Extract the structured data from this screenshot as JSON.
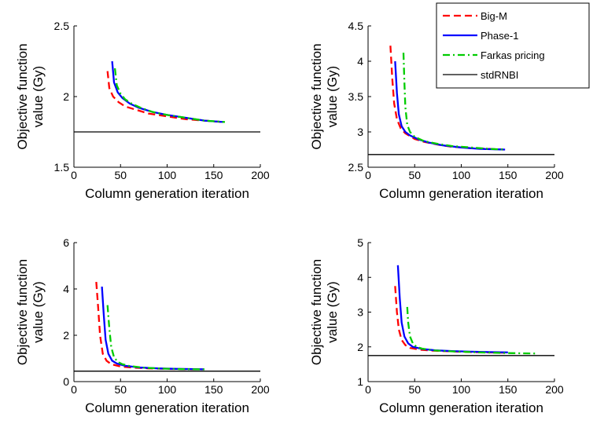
{
  "chart_data": [
    {
      "type": "line",
      "xlabel": "Column generation iteration",
      "ylabel": "Objective function value (Gy)",
      "xlim": [
        0,
        200
      ],
      "ylim": [
        1.5,
        2.5
      ],
      "xticks": [
        "0",
        "50",
        "100",
        "150",
        "200"
      ],
      "yticks": [
        "1.5",
        "2",
        "2.5"
      ],
      "grid": false,
      "series": [
        {
          "name": "Big-M",
          "color": "#ff0000",
          "dash": "dashed",
          "x": [
            36,
            38,
            42,
            48,
            55,
            65,
            80,
            100,
            120,
            140,
            160
          ],
          "y": [
            2.18,
            2.06,
            2.0,
            1.96,
            1.93,
            1.91,
            1.88,
            1.86,
            1.84,
            1.83,
            1.82
          ]
        },
        {
          "name": "Phase-1",
          "color": "#0000ff",
          "dash": "solid",
          "x": [
            41,
            43,
            47,
            52,
            60,
            70,
            85,
            100,
            120,
            140,
            160
          ],
          "y": [
            2.25,
            2.1,
            2.03,
            1.99,
            1.95,
            1.92,
            1.89,
            1.87,
            1.85,
            1.83,
            1.82
          ]
        },
        {
          "name": "Farkas pricing",
          "color": "#00cc00",
          "dash": "dashdot",
          "x": [
            44,
            46,
            50,
            55,
            62,
            72,
            85,
            100,
            120,
            140,
            162
          ],
          "y": [
            2.2,
            2.08,
            2.02,
            1.98,
            1.95,
            1.92,
            1.89,
            1.87,
            1.85,
            1.83,
            1.82
          ]
        },
        {
          "name": "stdRNBI",
          "color": "#000000",
          "dash": "solid",
          "x": [
            0,
            200
          ],
          "y": [
            1.75,
            1.75
          ]
        }
      ]
    },
    {
      "type": "line",
      "xlabel": "Column generation iteration",
      "ylabel": "Objective function value (Gy)",
      "xlim": [
        0,
        200
      ],
      "ylim": [
        2.5,
        4.5
      ],
      "xticks": [
        "0",
        "50",
        "100",
        "150",
        "200"
      ],
      "yticks": [
        "2.5",
        "3",
        "3.5",
        "4",
        "4.5"
      ],
      "grid": false,
      "series": [
        {
          "name": "Big-M",
          "color": "#ff0000",
          "dash": "dashed",
          "x": [
            24,
            26,
            28,
            31,
            35,
            40,
            50,
            60,
            75,
            90,
            110,
            130,
            145
          ],
          "y": [
            4.22,
            3.75,
            3.4,
            3.18,
            3.05,
            2.98,
            2.9,
            2.86,
            2.82,
            2.79,
            2.77,
            2.76,
            2.75
          ]
        },
        {
          "name": "Phase-1",
          "color": "#0000ff",
          "dash": "solid",
          "x": [
            29,
            31,
            33,
            36,
            40,
            45,
            55,
            65,
            80,
            100,
            120,
            147
          ],
          "y": [
            4.0,
            3.55,
            3.25,
            3.08,
            3.0,
            2.95,
            2.89,
            2.85,
            2.81,
            2.78,
            2.76,
            2.75
          ]
        },
        {
          "name": "Farkas pricing",
          "color": "#00cc00",
          "dash": "dashdot",
          "x": [
            38,
            39,
            40,
            42,
            45,
            50,
            60,
            75,
            90,
            110,
            130,
            147
          ],
          "y": [
            4.12,
            3.7,
            3.35,
            3.1,
            3.0,
            2.93,
            2.87,
            2.83,
            2.8,
            2.78,
            2.76,
            2.75
          ]
        },
        {
          "name": "stdRNBI",
          "color": "#000000",
          "dash": "solid",
          "x": [
            0,
            200
          ],
          "y": [
            2.68,
            2.68
          ]
        }
      ]
    },
    {
      "type": "line",
      "xlabel": "Column generation iteration",
      "ylabel": "Objective function value (Gy)",
      "xlim": [
        0,
        200
      ],
      "ylim": [
        0,
        6
      ],
      "xticks": [
        "0",
        "50",
        "100",
        "150",
        "200"
      ],
      "yticks": [
        "0",
        "2",
        "4",
        "6"
      ],
      "grid": false,
      "series": [
        {
          "name": "Big-M",
          "color": "#ff0000",
          "dash": "dashed",
          "x": [
            24,
            26,
            28,
            31,
            35,
            40,
            50,
            65,
            80,
            100,
            120,
            138
          ],
          "y": [
            4.3,
            3.2,
            2.0,
            1.2,
            0.9,
            0.75,
            0.65,
            0.6,
            0.57,
            0.55,
            0.54,
            0.53
          ]
        },
        {
          "name": "Phase-1",
          "color": "#0000ff",
          "dash": "solid",
          "x": [
            30,
            32,
            34,
            37,
            41,
            46,
            55,
            70,
            90,
            110,
            130,
            140
          ],
          "y": [
            4.1,
            2.9,
            1.8,
            1.2,
            0.9,
            0.78,
            0.68,
            0.61,
            0.57,
            0.55,
            0.54,
            0.53
          ]
        },
        {
          "name": "Farkas pricing",
          "color": "#00cc00",
          "dash": "dashdot",
          "x": [
            36,
            38,
            40,
            43,
            47,
            52,
            60,
            75,
            95,
            115,
            140
          ],
          "y": [
            3.3,
            2.3,
            1.5,
            1.05,
            0.85,
            0.75,
            0.67,
            0.6,
            0.56,
            0.54,
            0.53
          ]
        },
        {
          "name": "stdRNBI",
          "color": "#000000",
          "dash": "solid",
          "x": [
            0,
            200
          ],
          "y": [
            0.45,
            0.45
          ]
        }
      ]
    },
    {
      "type": "line",
      "xlabel": "Column generation iteration",
      "ylabel": "Objective function value (Gy)",
      "xlim": [
        0,
        200
      ],
      "ylim": [
        1,
        5
      ],
      "xticks": [
        "0",
        "50",
        "100",
        "150",
        "200"
      ],
      "yticks": [
        "1",
        "2",
        "3",
        "4",
        "5"
      ],
      "grid": false,
      "series": [
        {
          "name": "Big-M",
          "color": "#ff0000",
          "dash": "dashed",
          "x": [
            29,
            31,
            33,
            36,
            40,
            45,
            55,
            70,
            90,
            110,
            130,
            150
          ],
          "y": [
            3.75,
            3.0,
            2.5,
            2.2,
            2.05,
            1.97,
            1.92,
            1.89,
            1.87,
            1.85,
            1.84,
            1.83
          ]
        },
        {
          "name": "Phase-1",
          "color": "#0000ff",
          "dash": "solid",
          "x": [
            32,
            34,
            36,
            39,
            43,
            48,
            58,
            72,
            90,
            110,
            130,
            150
          ],
          "y": [
            4.35,
            3.4,
            2.7,
            2.3,
            2.1,
            2.0,
            1.94,
            1.9,
            1.88,
            1.86,
            1.85,
            1.84
          ]
        },
        {
          "name": "Farkas pricing",
          "color": "#00cc00",
          "dash": "dashdot",
          "x": [
            42,
            43,
            45,
            48,
            52,
            58,
            70,
            90,
            120,
            150,
            180
          ],
          "y": [
            3.15,
            2.7,
            2.3,
            2.1,
            2.0,
            1.95,
            1.9,
            1.87,
            1.84,
            1.82,
            1.81
          ]
        },
        {
          "name": "stdRNBI",
          "color": "#000000",
          "dash": "solid",
          "x": [
            0,
            200
          ],
          "y": [
            1.75,
            1.75
          ]
        }
      ]
    }
  ],
  "legend": {
    "placement": "top-right",
    "entries": [
      {
        "label": "Big-M",
        "color": "#ff0000",
        "dash": "dashed"
      },
      {
        "label": "Phase-1",
        "color": "#0000ff",
        "dash": "solid"
      },
      {
        "label": "Farkas pricing",
        "color": "#00cc00",
        "dash": "dashdot"
      },
      {
        "label": "stdRNBI",
        "color": "#000000",
        "dash": "solid"
      }
    ]
  }
}
